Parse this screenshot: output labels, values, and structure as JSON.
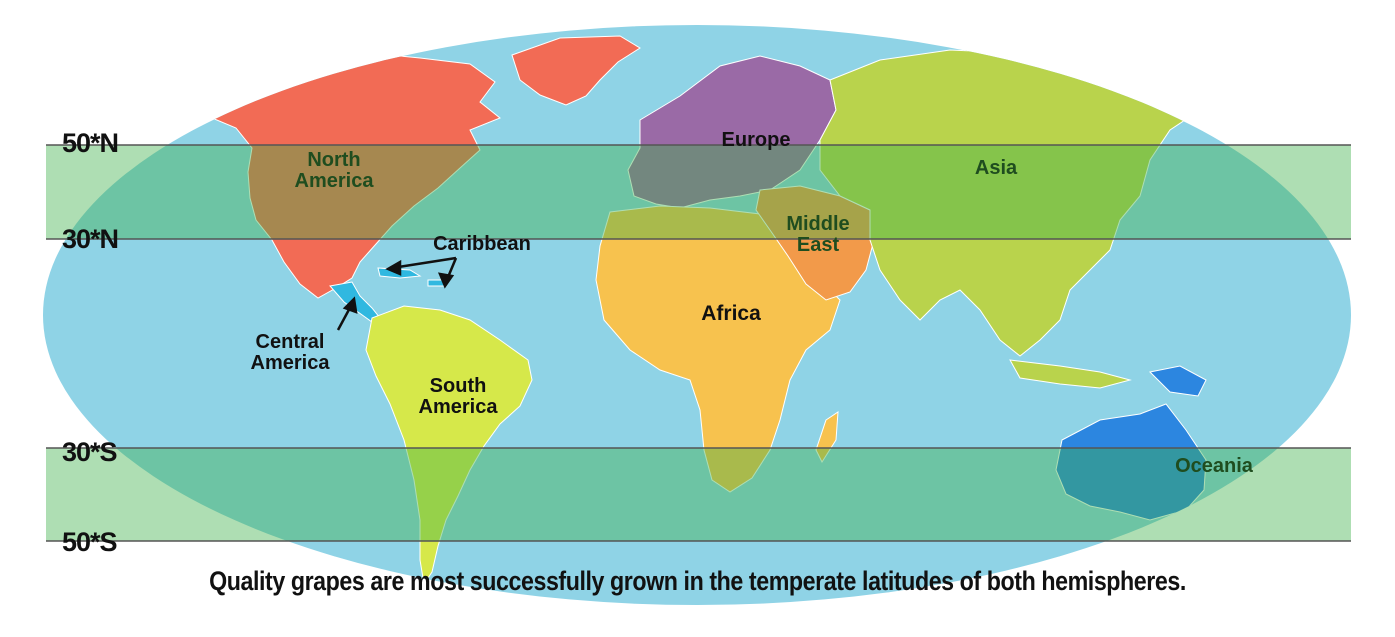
{
  "colors": {
    "ocean": "#8fd3e6",
    "north_america": "#f26b55",
    "greenland": "#f26b55",
    "central_america": "#30b8e0",
    "caribbean": "#30b8e0",
    "south_america": "#d6e84a",
    "europe": "#9a6aa6",
    "africa": "#f7c24e",
    "middle_east": "#f29a4a",
    "asia": "#b9d34c",
    "oceania": "#2c86e0",
    "temperate_band": "#3fb04b",
    "band_line": "#555555"
  },
  "latitude_bands": [
    {
      "top_label": "50*N",
      "bottom_label": "30*N",
      "hemisphere": "north"
    },
    {
      "top_label": "30*S",
      "bottom_label": "50*S",
      "hemisphere": "south"
    }
  ],
  "regions": {
    "north_america": "North\nAmerica",
    "caribbean": "Caribbean",
    "central_america": "Central\nAmerica",
    "south_america": "South\nAmerica",
    "europe": "Europe",
    "middle_east": "Middle\nEast",
    "africa": "Africa",
    "asia": "Asia",
    "oceania": "Oceania"
  },
  "caption": "Quality grapes are most successfully grown in the temperate latitudes of both hemispheres."
}
